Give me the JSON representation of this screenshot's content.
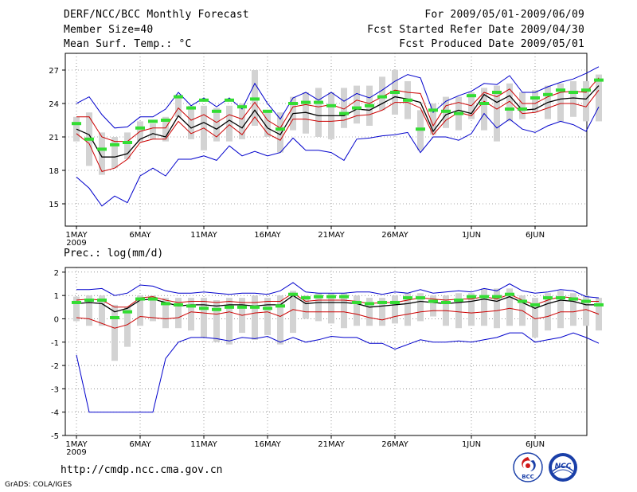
{
  "header": {
    "title": "DERF/NCC/BCC Monthly Forecast",
    "member_size": "Member Size=40",
    "variable": "Mean Surf. Temp.: °C",
    "forecast_period": "For 2009/05/01-2009/06/09",
    "started_date": "Fcst Started Refer Date 2009/04/30",
    "produced_date": "Fcst Produced Date 2009/05/01"
  },
  "footer": {
    "url": "http://cmdp.ncc.cma.gov.cn",
    "grads": "GrADS: COLA/IGES",
    "logo_left_text": "BCC",
    "logo_right_text": "NCC"
  },
  "colors": {
    "max_min": "#0000cc",
    "mean": "#000000",
    "ensemble_edge": "#cc0000",
    "observed": "#33dd33",
    "spread_bar": "#d3d3d3",
    "grid": "#555555"
  },
  "chart_data": [
    {
      "type": "line",
      "title": "Mean Surf. Temp.: °C",
      "x_day_start": 1,
      "x_labels": [
        "1MAY",
        "6MAY",
        "11MAY",
        "16MAY",
        "21MAY",
        "26MAY",
        "1JUN",
        "6JUN"
      ],
      "x_label_days": [
        1,
        6,
        11,
        16,
        21,
        26,
        32,
        37
      ],
      "x_year": "2009",
      "ylim": [
        13,
        28.5
      ],
      "yticks": [
        15,
        18,
        21,
        24,
        27
      ],
      "series": [
        {
          "name": "max",
          "values": [
            24.0,
            24.6,
            23.0,
            21.8,
            21.9,
            22.8,
            22.8,
            23.5,
            25.0,
            23.8,
            24.5,
            23.7,
            24.5,
            23.5,
            25.8,
            24.0,
            22.6,
            24.5,
            25.0,
            24.3,
            25.0,
            24.2,
            24.9,
            24.5,
            25.2,
            26.0,
            26.6,
            26.3,
            23.2,
            24.2,
            24.7,
            25.1,
            25.8,
            25.7,
            26.5,
            25.0,
            25.0,
            25.5,
            25.9,
            26.2,
            26.7,
            27.3
          ]
        },
        {
          "name": "upper",
          "values": [
            22.8,
            22.8,
            21.0,
            20.6,
            20.6,
            21.5,
            21.8,
            21.8,
            23.6,
            22.5,
            23.0,
            22.3,
            23.0,
            22.6,
            24.1,
            22.5,
            21.8,
            23.7,
            23.9,
            23.7,
            23.9,
            23.5,
            24.3,
            24.0,
            24.6,
            25.2,
            25.0,
            24.9,
            22.0,
            23.8,
            24.1,
            23.8,
            25.0,
            24.6,
            25.3,
            24.0,
            24.0,
            24.6,
            25.0,
            25.1,
            25.0,
            26.3
          ]
        },
        {
          "name": "mean",
          "values": [
            21.7,
            21.2,
            19.2,
            19.2,
            19.5,
            20.8,
            21.3,
            21.0,
            22.9,
            21.8,
            22.3,
            21.7,
            22.5,
            21.8,
            23.4,
            21.8,
            21.2,
            23.1,
            23.2,
            22.9,
            22.9,
            22.9,
            23.5,
            23.4,
            24.0,
            24.6,
            24.4,
            24.1,
            21.5,
            23.0,
            23.4,
            23.1,
            24.8,
            24.1,
            24.7,
            23.4,
            23.5,
            24.1,
            24.4,
            24.5,
            24.4,
            25.6
          ]
        },
        {
          "name": "lower",
          "values": [
            21.3,
            20.4,
            17.9,
            18.2,
            19.0,
            20.5,
            20.8,
            20.8,
            22.4,
            21.3,
            21.8,
            21.0,
            22.1,
            21.2,
            22.8,
            21.3,
            20.7,
            22.6,
            22.6,
            22.4,
            22.4,
            22.5,
            22.9,
            23.0,
            23.4,
            24.1,
            24.1,
            23.6,
            21.2,
            22.5,
            23.2,
            22.9,
            24.2,
            23.5,
            24.2,
            23.1,
            23.2,
            23.6,
            24.0,
            24.0,
            23.7,
            25.2
          ]
        },
        {
          "name": "min",
          "values": [
            17.4,
            16.4,
            14.8,
            15.7,
            15.1,
            17.5,
            18.2,
            17.5,
            19.0,
            19.0,
            19.3,
            18.9,
            20.2,
            19.3,
            19.7,
            19.3,
            19.6,
            20.9,
            19.8,
            19.8,
            19.6,
            18.9,
            20.8,
            20.9,
            21.1,
            21.2,
            21.4,
            19.6,
            21.0,
            21.0,
            20.7,
            21.3,
            23.1,
            21.8,
            22.6,
            21.7,
            21.4,
            22.0,
            22.4,
            22.1,
            21.5,
            23.7
          ]
        },
        {
          "name": "observed",
          "values": [
            22.2,
            20.8,
            19.9,
            20.3,
            20.5,
            21.8,
            22.4,
            22.5,
            24.6,
            23.6,
            24.3,
            23.3,
            24.3,
            23.7,
            24.4,
            23.3,
            21.7,
            24.0,
            24.1,
            24.1,
            23.8,
            23.1,
            23.6,
            23.8,
            24.6,
            25.0,
            24.3,
            21.7,
            23.4,
            23.3,
            23.1,
            24.7,
            24.0,
            25.0,
            23.5,
            23.5,
            24.5,
            24.8,
            25.2,
            25.0,
            25.2,
            26.1
          ]
        },
        {
          "name": "spread_low",
          "values": [
            20.6,
            18.4,
            17.6,
            18.2,
            19.0,
            20.6,
            20.8,
            20.6,
            22.8,
            20.8,
            19.8,
            20.6,
            20.6,
            20.8,
            22.0,
            21.0,
            19.6,
            21.6,
            21.3,
            21.0,
            20.8,
            21.8,
            22.2,
            22.0,
            23.4,
            23.0,
            22.6,
            19.8,
            21.2,
            21.8,
            21.6,
            22.6,
            21.6,
            20.6,
            22.4,
            22.6,
            23.2,
            22.6,
            22.4,
            22.8,
            22.4,
            22.4
          ]
        },
        {
          "name": "spread_high",
          "values": [
            22.8,
            23.2,
            21.4,
            21.0,
            21.4,
            22.4,
            22.2,
            22.8,
            24.8,
            23.8,
            23.8,
            23.6,
            23.8,
            24.0,
            27.0,
            23.4,
            23.2,
            24.6,
            25.0,
            25.4,
            25.0,
            25.4,
            25.6,
            25.6,
            26.4,
            27.0,
            26.0,
            23.4,
            24.0,
            24.6,
            24.6,
            25.0,
            25.4,
            25.6,
            25.8,
            25.0,
            25.2,
            25.6,
            25.8,
            26.0,
            26.0,
            26.6
          ]
        }
      ]
    },
    {
      "type": "line",
      "title": "Prec.: log(mm/d)",
      "x_day_start": 1,
      "x_labels": [
        "1MAY",
        "6MAY",
        "11MAY",
        "16MAY",
        "21MAY",
        "26MAY",
        "1JUN",
        "6JUN"
      ],
      "x_label_days": [
        1,
        6,
        11,
        16,
        21,
        26,
        32,
        37
      ],
      "x_year": "2009",
      "ylim": [
        -5,
        2.2
      ],
      "yticks": [
        -5,
        -4,
        -3,
        -2,
        -1,
        0,
        1,
        2
      ],
      "series": [
        {
          "name": "max",
          "values": [
            1.25,
            1.25,
            1.3,
            1.0,
            1.1,
            1.45,
            1.4,
            1.2,
            1.1,
            1.1,
            1.15,
            1.1,
            1.05,
            1.1,
            1.1,
            1.05,
            1.2,
            1.55,
            1.15,
            1.1,
            1.1,
            1.1,
            1.15,
            1.15,
            1.05,
            1.15,
            1.1,
            1.25,
            1.1,
            1.15,
            1.2,
            1.15,
            1.3,
            1.2,
            1.5,
            1.2,
            1.1,
            1.15,
            1.25,
            1.2,
            0.95,
            0.9
          ]
        },
        {
          "name": "upper",
          "values": [
            0.8,
            0.85,
            0.8,
            0.5,
            0.5,
            0.9,
            0.95,
            0.8,
            0.7,
            0.75,
            0.75,
            0.7,
            0.75,
            0.7,
            0.7,
            0.75,
            0.75,
            1.1,
            0.75,
            0.8,
            0.8,
            0.8,
            0.75,
            0.65,
            0.7,
            0.7,
            0.8,
            0.9,
            0.85,
            0.8,
            0.85,
            0.85,
            0.95,
            0.85,
            1.05,
            0.8,
            0.6,
            0.8,
            0.95,
            0.9,
            0.75,
            0.75
          ]
        },
        {
          "name": "mean",
          "values": [
            0.65,
            0.7,
            0.65,
            0.3,
            0.45,
            0.8,
            0.85,
            0.7,
            0.55,
            0.6,
            0.6,
            0.55,
            0.6,
            0.6,
            0.55,
            0.6,
            0.6,
            1.0,
            0.65,
            0.7,
            0.7,
            0.7,
            0.65,
            0.5,
            0.55,
            0.6,
            0.65,
            0.75,
            0.7,
            0.65,
            0.7,
            0.75,
            0.85,
            0.75,
            0.95,
            0.7,
            0.45,
            0.65,
            0.8,
            0.75,
            0.6,
            0.6
          ]
        },
        {
          "name": "lower",
          "values": [
            0.05,
            0.0,
            -0.2,
            -0.4,
            -0.25,
            0.1,
            0.05,
            0.0,
            0.05,
            0.3,
            0.25,
            0.2,
            0.3,
            0.15,
            0.25,
            0.3,
            0.1,
            0.4,
            0.3,
            0.3,
            0.3,
            0.3,
            0.2,
            0.05,
            -0.05,
            0.1,
            0.2,
            0.3,
            0.35,
            0.35,
            0.3,
            0.25,
            0.3,
            0.35,
            0.45,
            0.35,
            0.0,
            0.1,
            0.3,
            0.3,
            0.4,
            0.2
          ]
        },
        {
          "name": "min",
          "values": [
            -1.55,
            -4.0,
            -4.0,
            -4.0,
            -4.0,
            -4.0,
            -4.0,
            -1.7,
            -1.0,
            -0.8,
            -0.8,
            -0.85,
            -0.95,
            -0.8,
            -0.85,
            -0.75,
            -1.0,
            -0.8,
            -1.0,
            -0.9,
            -0.75,
            -0.8,
            -0.8,
            -1.05,
            -1.05,
            -1.3,
            -1.1,
            -0.9,
            -1.0,
            -1.0,
            -0.95,
            -1.0,
            -0.9,
            -0.8,
            -0.6,
            -0.6,
            -1.0,
            -0.9,
            -0.8,
            -0.6,
            -0.8,
            -1.05
          ]
        },
        {
          "name": "observed",
          "values": [
            0.7,
            0.8,
            0.8,
            0.05,
            0.3,
            0.85,
            0.85,
            0.65,
            0.6,
            0.55,
            0.45,
            0.4,
            0.5,
            0.5,
            0.5,
            0.45,
            0.55,
            1.05,
            0.9,
            0.95,
            0.95,
            0.95,
            0.7,
            0.65,
            0.7,
            0.7,
            0.9,
            0.9,
            0.75,
            0.7,
            0.8,
            0.95,
            0.95,
            0.95,
            1.05,
            0.75,
            0.6,
            0.9,
            0.9,
            0.85,
            0.75,
            0.6
          ]
        },
        {
          "name": "spread_low",
          "values": [
            -0.1,
            -0.3,
            -0.3,
            -1.8,
            -1.2,
            -0.3,
            -0.1,
            -0.4,
            -0.4,
            -0.5,
            -0.8,
            -1.0,
            -1.1,
            -0.6,
            -0.9,
            -0.7,
            -1.1,
            -0.6,
            0.0,
            -0.1,
            -0.2,
            -0.4,
            -0.3,
            -0.3,
            -0.3,
            -0.2,
            -0.3,
            -0.1,
            0.1,
            -0.3,
            -0.4,
            -0.3,
            -0.3,
            -0.4,
            -0.3,
            -0.3,
            -0.8,
            -0.5,
            -0.4,
            -0.3,
            -0.3,
            -0.5
          ]
        },
        {
          "name": "spread_high",
          "values": [
            0.95,
            1.0,
            1.0,
            0.6,
            0.5,
            1.0,
            1.0,
            0.9,
            0.9,
            0.9,
            0.9,
            0.8,
            0.9,
            0.9,
            1.0,
            0.9,
            1.0,
            1.2,
            1.0,
            1.1,
            1.1,
            1.1,
            1.0,
            0.9,
            0.9,
            1.0,
            1.1,
            1.1,
            1.0,
            1.0,
            1.1,
            1.1,
            1.3,
            1.3,
            1.3,
            1.0,
            0.9,
            1.1,
            1.2,
            1.1,
            1.0,
            0.9
          ]
        }
      ]
    }
  ]
}
